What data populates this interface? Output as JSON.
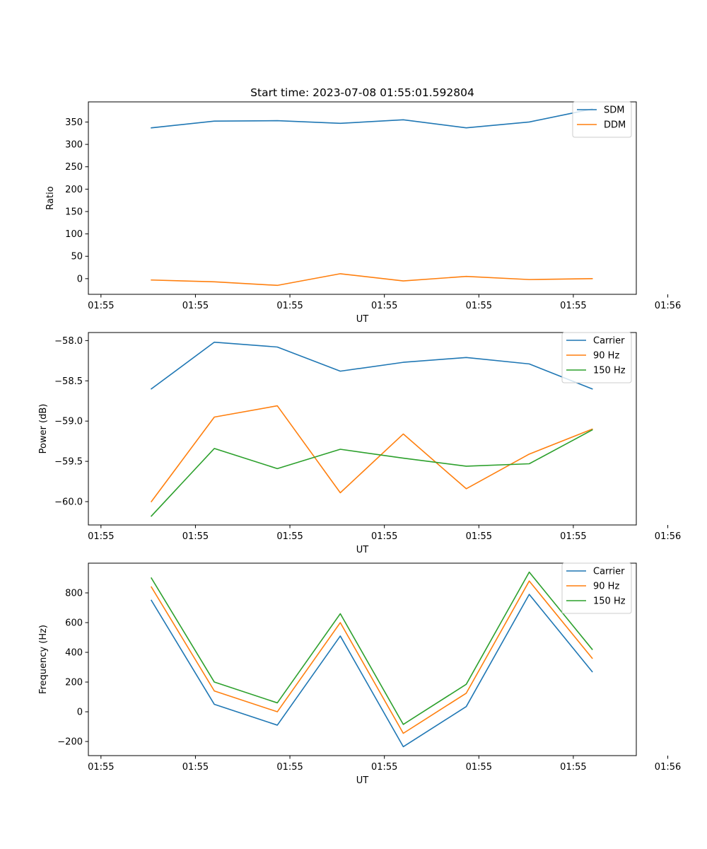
{
  "figure": {
    "title": "Start time: 2023-07-08 01:55:01.592804"
  },
  "colors": {
    "blue": "#1f77b4",
    "orange": "#ff7f0e",
    "green": "#2ca02c"
  },
  "chart_data": [
    {
      "type": "line",
      "title": "Start time: 2023-07-08 01:55:01.592804",
      "xlabel": "UT",
      "ylabel": "Ratio",
      "xlim": [
        0,
        8.7
      ],
      "ylim": [
        -35,
        395
      ],
      "x": [
        1,
        2,
        3,
        4,
        5,
        6,
        7,
        8
      ],
      "xticks": [
        {
          "x": 0.2,
          "label": "01:55"
        },
        {
          "x": 1.7,
          "label": "01:55"
        },
        {
          "x": 3.2,
          "label": "01:55"
        },
        {
          "x": 4.7,
          "label": "01:55"
        },
        {
          "x": 6.2,
          "label": "01:55"
        },
        {
          "x": 7.7,
          "label": "01:55"
        },
        {
          "x": 9.2,
          "label": "01:56"
        }
      ],
      "yticks": [
        0,
        50,
        100,
        150,
        200,
        250,
        300,
        350
      ],
      "legend": "top-right",
      "series": [
        {
          "name": "SDM",
          "color": "#1f77b4",
          "values": [
            337,
            352,
            353,
            347,
            355,
            337,
            350,
            379
          ]
        },
        {
          "name": "DDM",
          "color": "#ff7f0e",
          "values": [
            -3,
            -7,
            -15,
            11,
            -5,
            5,
            -2,
            0
          ]
        }
      ]
    },
    {
      "type": "line",
      "title": "",
      "xlabel": "UT",
      "ylabel": "Power (dB)",
      "xlim": [
        0,
        8.7
      ],
      "ylim": [
        -60.29,
        -57.9
      ],
      "x": [
        1,
        2,
        3,
        4,
        5,
        6,
        7,
        8
      ],
      "xticks": [
        {
          "x": 0.2,
          "label": "01:55"
        },
        {
          "x": 1.7,
          "label": "01:55"
        },
        {
          "x": 3.2,
          "label": "01:55"
        },
        {
          "x": 4.7,
          "label": "01:55"
        },
        {
          "x": 6.2,
          "label": "01:55"
        },
        {
          "x": 7.7,
          "label": "01:55"
        },
        {
          "x": 9.2,
          "label": "01:56"
        }
      ],
      "yticks": [
        -60.0,
        -59.5,
        -59.0,
        -58.5,
        -58.0
      ],
      "ytick_labels": [
        "−60.0",
        "−59.5",
        "−59.0",
        "−58.5",
        "−58.0"
      ],
      "legend": "top-right",
      "series": [
        {
          "name": "Carrier",
          "color": "#1f77b4",
          "values": [
            -58.6,
            -58.02,
            -58.08,
            -58.38,
            -58.27,
            -58.21,
            -58.29,
            -58.6
          ]
        },
        {
          "name": "90 Hz",
          "color": "#ff7f0e",
          "values": [
            -60.0,
            -58.95,
            -58.81,
            -59.89,
            -59.16,
            -59.84,
            -59.41,
            -59.1
          ]
        },
        {
          "name": "150 Hz",
          "color": "#2ca02c",
          "values": [
            -60.18,
            -59.34,
            -59.59,
            -59.35,
            -59.46,
            -59.56,
            -59.53,
            -59.11
          ]
        }
      ]
    },
    {
      "type": "line",
      "title": "",
      "xlabel": "UT",
      "ylabel": "Frequency (Hz)",
      "xlim": [
        0,
        8.7
      ],
      "ylim": [
        -295,
        1000
      ],
      "x": [
        1,
        2,
        3,
        4,
        5,
        6,
        7,
        8
      ],
      "xticks": [
        {
          "x": 0.2,
          "label": "01:55"
        },
        {
          "x": 1.7,
          "label": "01:55"
        },
        {
          "x": 3.2,
          "label": "01:55"
        },
        {
          "x": 4.7,
          "label": "01:55"
        },
        {
          "x": 6.2,
          "label": "01:55"
        },
        {
          "x": 7.7,
          "label": "01:55"
        },
        {
          "x": 9.2,
          "label": "01:56"
        }
      ],
      "yticks": [
        -200,
        0,
        200,
        400,
        600,
        800
      ],
      "ytick_labels": [
        "−200",
        "0",
        "200",
        "400",
        "600",
        "800"
      ],
      "legend": "top-right",
      "series": [
        {
          "name": "Carrier",
          "color": "#1f77b4",
          "values": [
            750,
            50,
            -90,
            510,
            -235,
            35,
            790,
            270
          ]
        },
        {
          "name": "90 Hz",
          "color": "#ff7f0e",
          "values": [
            840,
            140,
            0,
            600,
            -145,
            125,
            880,
            360
          ]
        },
        {
          "name": "150 Hz",
          "color": "#2ca02c",
          "values": [
            900,
            200,
            60,
            660,
            -85,
            185,
            940,
            420
          ]
        }
      ]
    }
  ]
}
